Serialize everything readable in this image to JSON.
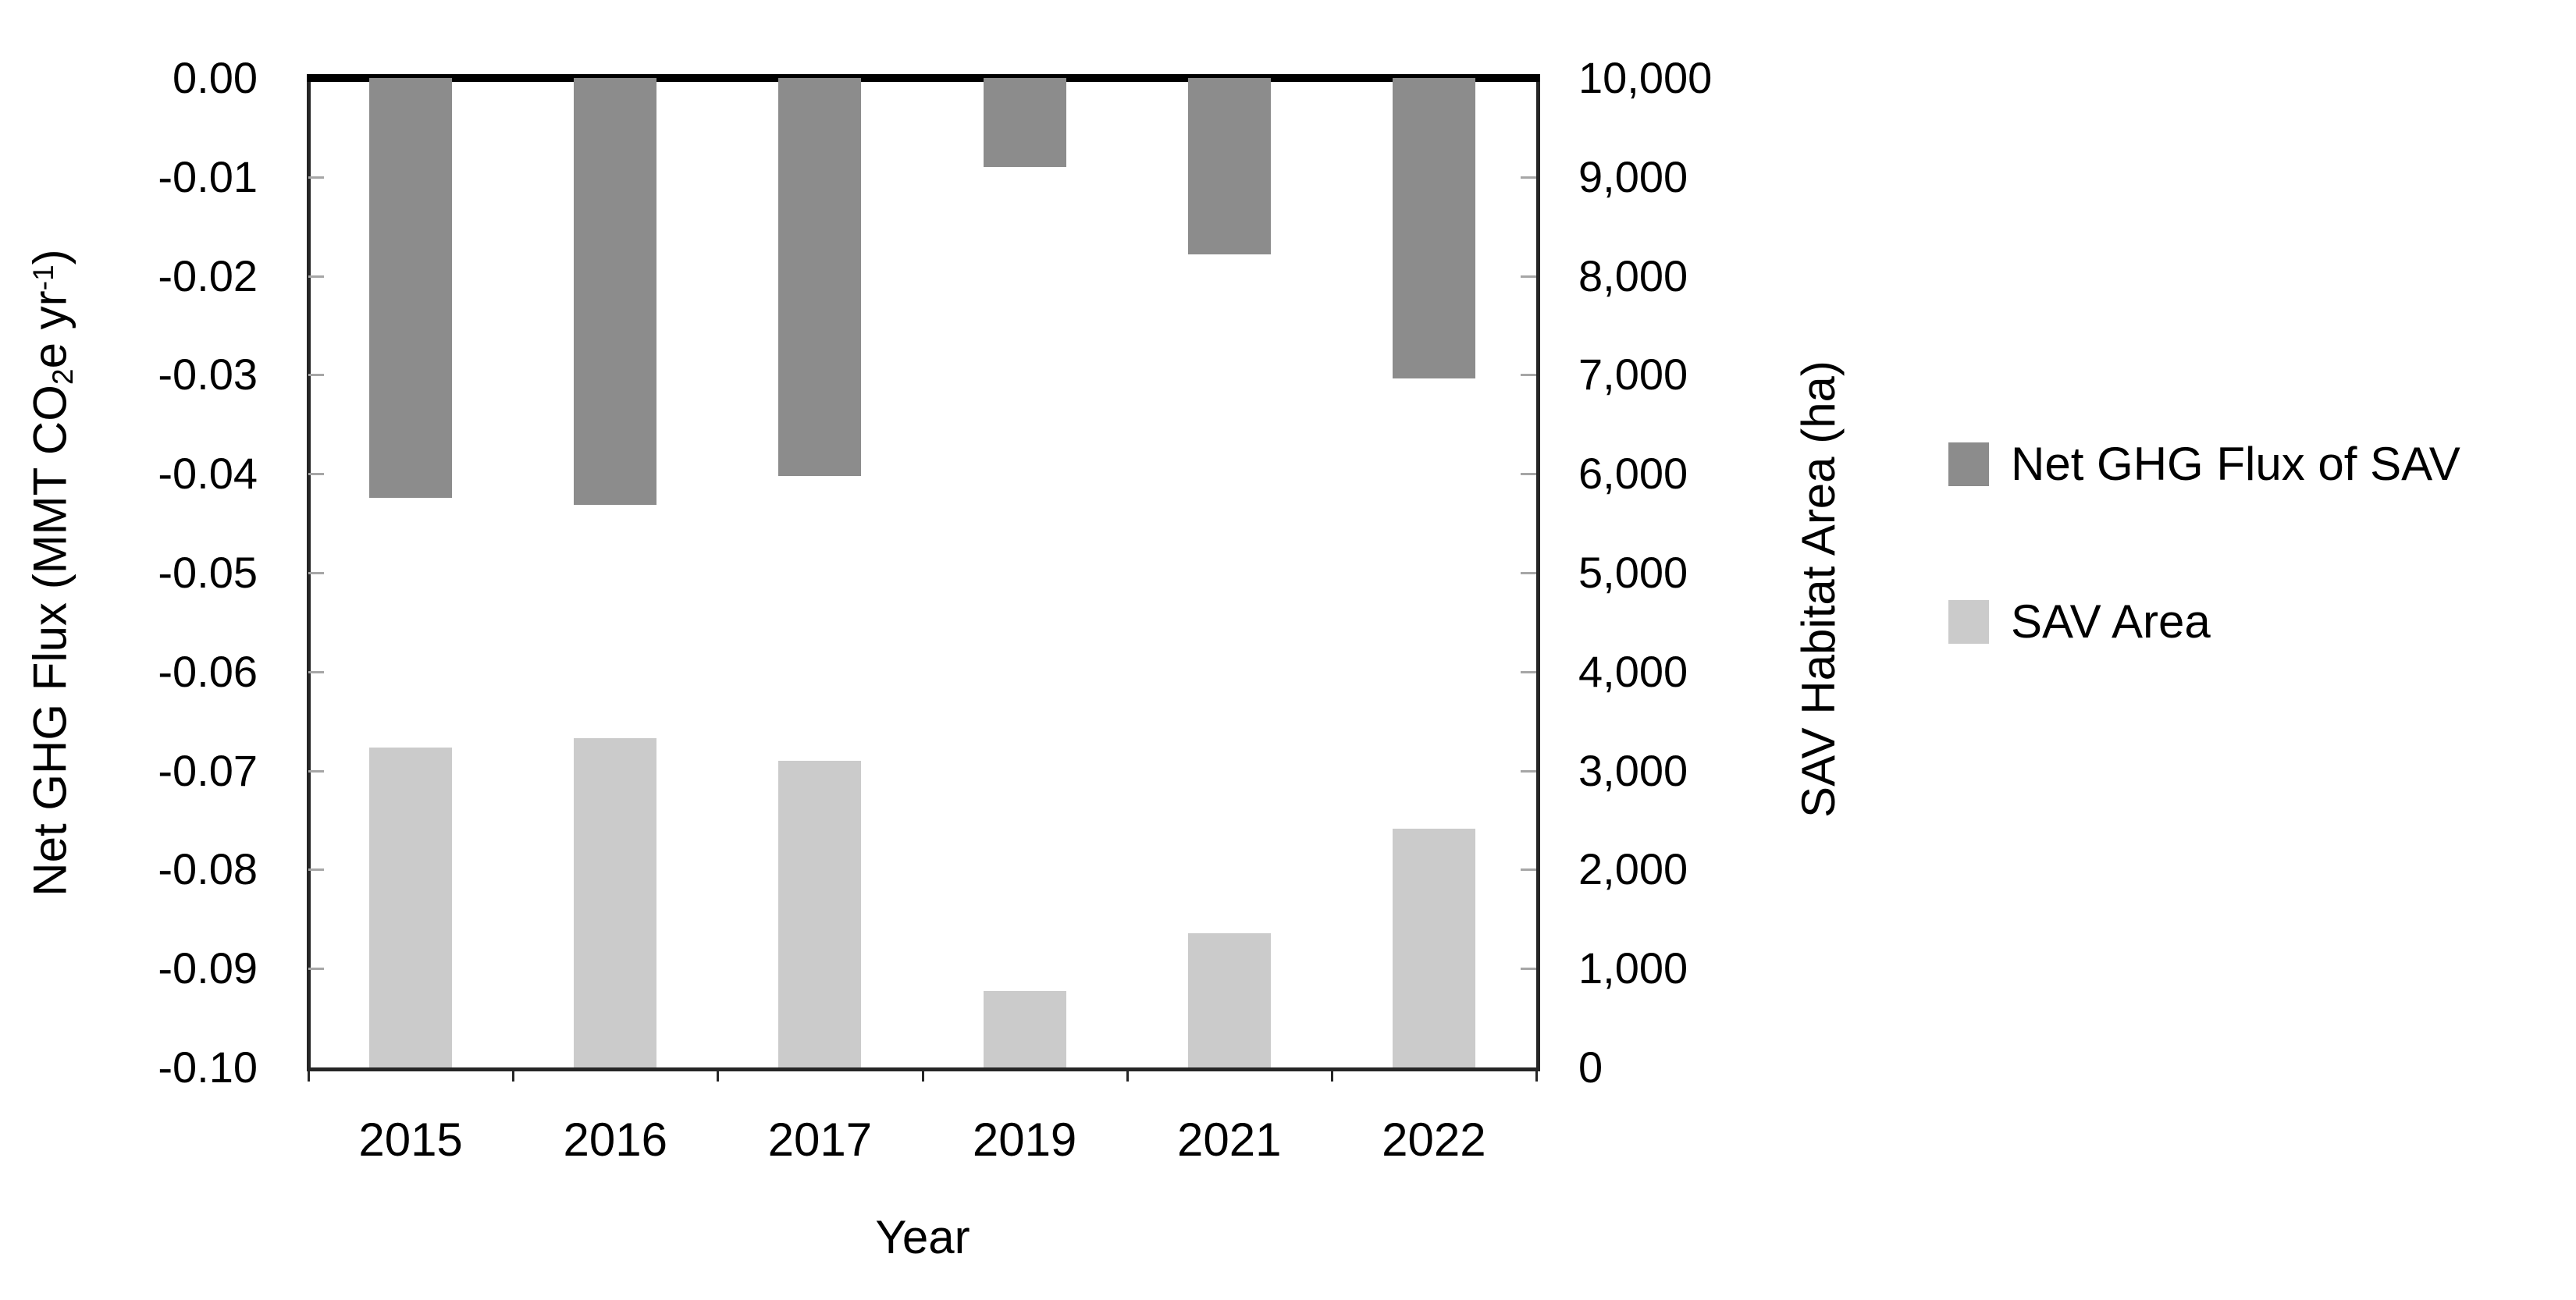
{
  "chart_data": {
    "type": "bar",
    "title": "",
    "categories": [
      "2015",
      "2016",
      "2017",
      "2019",
      "2021",
      "2022"
    ],
    "series": [
      {
        "name": "Net GHG Flux of SAV",
        "axis": "left",
        "color": "#8c8c8c",
        "units": "MMT CO2e yr-1",
        "values": [
          -0.0424,
          -0.0431,
          -0.0402,
          -0.009,
          -0.0178,
          -0.0304
        ]
      },
      {
        "name": "SAV Area",
        "axis": "right",
        "color": "#cbcbcb",
        "units": "ha",
        "values": [
          3230,
          3330,
          3100,
          770,
          1360,
          2410
        ]
      }
    ],
    "left_axis": {
      "title": "Net GHG Flux (MMT CO2e yr-1)",
      "range": [
        -0.1,
        0.0
      ],
      "tick_labels": [
        "0.00",
        "-0.01",
        "-0.02",
        "-0.03",
        "-0.04",
        "-0.05",
        "-0.06",
        "-0.07",
        "-0.08",
        "-0.09",
        "-0.10"
      ]
    },
    "right_axis": {
      "title": "SAV Habitat Area (ha)",
      "range": [
        0,
        10000
      ],
      "tick_labels": [
        "10,000",
        "9,000",
        "8,000",
        "7,000",
        "6,000",
        "5,000",
        "4,000",
        "3,000",
        "2,000",
        "1,000",
        "0"
      ]
    },
    "x_axis": {
      "title": "Year"
    },
    "grid": false,
    "legend_position": "right",
    "bar_overlap": "same-column"
  },
  "left_axis_title": {
    "pre": "Net GHG Flux (MMT CO",
    "sub": "2",
    "mid": "e yr",
    "sup": "-1",
    "post": ")"
  },
  "right_axis_title": "SAV Habitat Area (ha)",
  "x_axis_title": "Year",
  "legend": {
    "items": [
      {
        "label": "Net GHG Flux of SAV",
        "color": "#8c8c8c"
      },
      {
        "label": "SAV Area",
        "color": "#cbcbcb"
      }
    ]
  }
}
